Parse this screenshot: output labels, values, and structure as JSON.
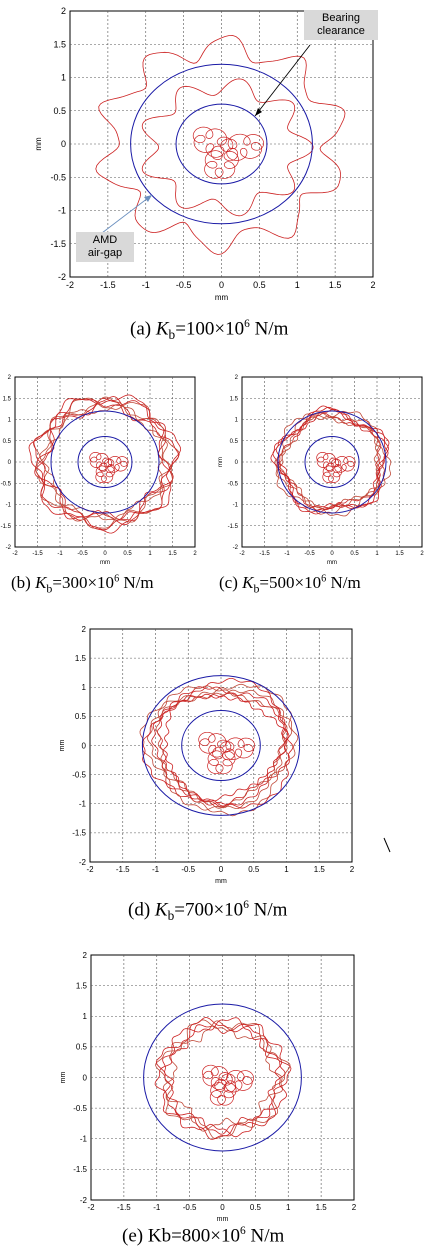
{
  "figure": {
    "captions": {
      "a": {
        "prefix": "(a) ",
        "k": "K",
        "sub": "b",
        "value": "=100×10",
        "exp": "6",
        "unit": " N/m"
      },
      "b": {
        "prefix": "(b) ",
        "k": "K",
        "sub": "b",
        "value": "=300×10",
        "exp": "6",
        "unit": " N/m"
      },
      "c": {
        "prefix": "(c) ",
        "k": "K",
        "sub": "b",
        "value": "=500×10",
        "exp": "6",
        "unit": " N/m"
      },
      "d": {
        "prefix": "(d) ",
        "k": "K",
        "sub": "b",
        "value": "=700×10",
        "exp": "6",
        "unit": " N/m"
      },
      "e": {
        "prefix": "(e) ",
        "k": "Kb",
        "sub": "",
        "value": "=800×10",
        "exp": "6",
        "unit": " N/m"
      }
    },
    "callouts": {
      "bearing_line1": "Bearing",
      "bearing_line2": "clearance",
      "amd_line1": "AMD",
      "amd_line2": "air-gap"
    },
    "colors": {
      "orbit": "#cc2222",
      "orbit_light": "#c04a3a",
      "circle": "#1a1aa6",
      "grid": "#555555"
    }
  },
  "chart_data": [
    {
      "id": "a",
      "type": "line",
      "title": "",
      "xlabel": "mm",
      "ylabel": "mm",
      "xlim": [
        -2,
        2
      ],
      "ylim": [
        -2,
        2
      ],
      "xticks": [
        -2,
        -1.5,
        -1,
        -0.5,
        0,
        0.5,
        1,
        1.5,
        2
      ],
      "yticks": [
        -2,
        -1.5,
        -1,
        -0.5,
        0,
        0.5,
        1,
        1.5,
        2
      ],
      "grid": true,
      "reference_circles": [
        {
          "name": "AMD air-gap",
          "radius": 1.2
        },
        {
          "name": "Bearing clearance",
          "radius": 0.6
        }
      ],
      "orbit": {
        "outer_radius": 1.75,
        "lobes": 10,
        "inner_radius": 0.5
      }
    },
    {
      "id": "b",
      "type": "line",
      "title": "",
      "xlabel": "mm",
      "ylabel": "mm",
      "xlim": [
        -2,
        2
      ],
      "ylim": [
        -2,
        2
      ],
      "xticks": [
        -2,
        -1.5,
        -1,
        -0.5,
        0,
        0.5,
        1,
        1.5,
        2
      ],
      "yticks": [
        -2,
        -1.5,
        -1,
        -0.5,
        0,
        0.5,
        1,
        1.5,
        2
      ],
      "grid": true,
      "reference_circles": [
        {
          "radius": 1.2
        },
        {
          "radius": 0.6
        }
      ],
      "orbit": {
        "outer_radius": 1.6,
        "lobes": 7,
        "inner_radius": 0.45
      }
    },
    {
      "id": "c",
      "type": "line",
      "title": "",
      "xlabel": "mm",
      "ylabel": "mm",
      "xlim": [
        -2,
        2
      ],
      "ylim": [
        -2,
        2
      ],
      "xticks": [
        -2,
        -1.5,
        -1,
        -0.5,
        0,
        0.5,
        1,
        1.5,
        2
      ],
      "yticks": [
        -2,
        -1.5,
        -1,
        -0.5,
        0,
        0.5,
        1,
        1.5,
        2
      ],
      "grid": true,
      "reference_circles": [
        {
          "radius": 1.2
        },
        {
          "radius": 0.6
        }
      ],
      "orbit": {
        "outer_radius": 1.25,
        "lobes": 5,
        "inner_radius": 0.45
      }
    },
    {
      "id": "d",
      "type": "line",
      "title": "",
      "xlabel": "mm",
      "ylabel": "mm",
      "xlim": [
        -2,
        2
      ],
      "ylim": [
        -2,
        2
      ],
      "xticks": [
        -2,
        -1.5,
        -1,
        -0.5,
        0,
        0.5,
        1,
        1.5,
        2
      ],
      "yticks": [
        -2,
        -1.5,
        -1,
        -0.5,
        0,
        0.5,
        1,
        1.5,
        2
      ],
      "grid": true,
      "reference_circles": [
        {
          "radius": 1.2
        },
        {
          "radius": 0.6
        }
      ],
      "orbit": {
        "outer_radius": 1.1,
        "lobes": 3,
        "inner_radius": 0.45
      }
    },
    {
      "id": "e",
      "type": "line",
      "title": "",
      "xlabel": "mm",
      "ylabel": "mm",
      "xlim": [
        -2,
        2
      ],
      "ylim": [
        -2,
        2
      ],
      "xticks": [
        -2,
        -1.5,
        -1,
        -0.5,
        0,
        0.5,
        1,
        1.5,
        2
      ],
      "yticks": [
        -2,
        -1.5,
        -1,
        -0.5,
        0,
        0.5,
        1,
        1.5,
        2
      ],
      "grid": true,
      "reference_circles": [
        {
          "radius": 1.2
        }
      ],
      "orbit": {
        "outer_radius": 0.95,
        "lobes": 7,
        "inner_radius": 0.4
      }
    }
  ]
}
